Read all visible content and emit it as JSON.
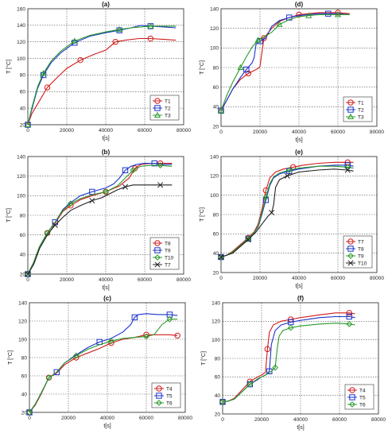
{
  "chart_data": [
    {
      "type": "line",
      "title": "(a)",
      "xlabel": "t[s]",
      "ylabel": "T [°C]",
      "xlim": [
        0,
        80000
      ],
      "ylim": [
        20,
        160
      ],
      "xticks": [
        "0",
        "20000",
        "40000",
        "60000",
        "80000"
      ],
      "yticks": [
        "20",
        "40",
        "60",
        "80",
        "100",
        "120",
        "140",
        "160"
      ],
      "grid": true,
      "legend_position": "bottom-right",
      "series": [
        {
          "name": "T1",
          "color": "#d11a1a",
          "marker": "circle",
          "x": [
            0,
            2000,
            6000,
            10000,
            15000,
            20000,
            27000,
            34000,
            40000,
            45000,
            50000,
            57000,
            63000,
            70000,
            76000
          ],
          "y": [
            20,
            33,
            49,
            65,
            77,
            88,
            98,
            105,
            110,
            120,
            122,
            124,
            124,
            123,
            122
          ]
        },
        {
          "name": "T2",
          "color": "#1a33cc",
          "marker": "square",
          "x": [
            0,
            2000,
            5000,
            8000,
            12000,
            17000,
            24000,
            32000,
            40000,
            47000,
            53000,
            58000,
            63000,
            70000,
            76000
          ],
          "y": [
            20,
            38,
            64,
            80,
            95,
            107,
            119,
            127,
            131,
            134,
            137,
            140,
            139,
            138,
            137
          ]
        },
        {
          "name": "T3",
          "color": "#2a9a2a",
          "marker": "triangle",
          "x": [
            0,
            2000,
            5000,
            8000,
            12000,
            17000,
            24000,
            32000,
            40000,
            47000,
            53000,
            58000,
            63000,
            70000,
            76000
          ],
          "y": [
            20,
            40,
            66,
            82,
            97,
            109,
            121,
            128,
            132,
            135,
            137,
            138,
            139,
            139,
            139
          ]
        }
      ]
    },
    {
      "type": "line",
      "title": "(d)",
      "xlabel": "t[s]",
      "ylabel": "T [°C]",
      "xlim": [
        0,
        80000
      ],
      "ylim": [
        20,
        140
      ],
      "xticks": [
        "0",
        "20000",
        "40000",
        "60000",
        "80000"
      ],
      "yticks": [
        "20",
        "40",
        "60",
        "80",
        "100",
        "120",
        "140"
      ],
      "grid": true,
      "legend_position": "bottom-right",
      "series": [
        {
          "name": "T1",
          "color": "#d11a1a",
          "marker": "circle",
          "x": [
            0,
            3000,
            6000,
            10000,
            14000,
            17000,
            19000,
            20000,
            22000,
            26000,
            30000,
            35000,
            40000,
            45000,
            50000,
            55000,
            60000,
            66000
          ],
          "y": [
            36,
            47,
            58,
            68,
            74,
            77,
            79,
            81,
            110,
            120,
            127,
            131,
            134,
            135,
            136,
            136,
            136,
            135
          ]
        },
        {
          "name": "T2",
          "color": "#1a33cc",
          "marker": "square",
          "x": [
            0,
            3000,
            6000,
            10000,
            13000,
            16000,
            17000,
            18000,
            20000,
            23000,
            26000,
            30000,
            35000,
            40000,
            45000,
            50000,
            55000,
            60000,
            66000
          ],
          "y": [
            36,
            47,
            58,
            70,
            78,
            85,
            90,
            104,
            107,
            110,
            122,
            128,
            131,
            133,
            134,
            135,
            135,
            135,
            134
          ]
        },
        {
          "name": "T3",
          "color": "#2a9a2a",
          "marker": "triangle",
          "x": [
            0,
            3000,
            6000,
            10000,
            13000,
            16000,
            19000,
            22000,
            26000,
            30000,
            35000,
            40000,
            45000,
            50000,
            55000,
            60000,
            66000
          ],
          "y": [
            36,
            52,
            65,
            80,
            91,
            101,
            108,
            111,
            116,
            124,
            129,
            132,
            133,
            134,
            134,
            134,
            134
          ]
        }
      ]
    },
    {
      "type": "line",
      "title": "(b)",
      "xlabel": "t[s]",
      "ylabel": "T [°C]",
      "xlim": [
        0,
        80000
      ],
      "ylim": [
        20,
        140
      ],
      "xticks": [
        "0",
        "20000",
        "40000",
        "60000",
        "80000"
      ],
      "yticks": [
        "20",
        "40",
        "60",
        "80",
        "100",
        "120",
        "140"
      ],
      "grid": true,
      "legend_position": "bottom-right",
      "series": [
        {
          "name": "T8",
          "color": "#d11a1a",
          "marker": "circle",
          "x": [
            0,
            3000,
            6000,
            10000,
            14000,
            18000,
            22000,
            27000,
            33000,
            40000,
            47000,
            52000,
            55000,
            58000,
            63000,
            68000,
            74000
          ],
          "y": [
            20,
            32,
            48,
            62,
            72,
            84,
            90,
            96,
            100,
            104,
            110,
            118,
            128,
            132,
            133,
            133,
            133
          ]
        },
        {
          "name": "T9",
          "color": "#1a33cc",
          "marker": "square",
          "x": [
            0,
            3000,
            6000,
            10000,
            14000,
            18000,
            22000,
            27000,
            33000,
            40000,
            44000,
            47000,
            50000,
            53000,
            56000,
            60000,
            65000,
            70000,
            74000
          ],
          "y": [
            20,
            32,
            48,
            62,
            73,
            86,
            93,
            100,
            104,
            108,
            112,
            118,
            126,
            130,
            132,
            133,
            133,
            132,
            132
          ]
        },
        {
          "name": "T10",
          "color": "#2a9a2a",
          "marker": "diamond",
          "x": [
            0,
            3000,
            6000,
            10000,
            14000,
            18000,
            22000,
            27000,
            33000,
            40000,
            46000,
            50000,
            54000,
            58000,
            63000,
            68000,
            74000
          ],
          "y": [
            20,
            32,
            48,
            62,
            73,
            85,
            92,
            97,
            101,
            104,
            110,
            118,
            126,
            130,
            131,
            131,
            130
          ]
        },
        {
          "name": "T7",
          "color": "#222222",
          "marker": "x",
          "x": [
            0,
            3000,
            6000,
            10000,
            14000,
            18000,
            22000,
            27000,
            33000,
            38000,
            42000,
            46000,
            50000,
            54000,
            58000,
            63000,
            68000,
            74000
          ],
          "y": [
            20,
            30,
            46,
            60,
            70,
            78,
            85,
            90,
            95,
            98,
            102,
            106,
            109,
            111,
            111,
            111,
            111,
            111
          ]
        }
      ]
    },
    {
      "type": "line",
      "title": "(e)",
      "xlabel": "t[s]",
      "ylabel": "T [°C]",
      "xlim": [
        0,
        80000
      ],
      "ylim": [
        20,
        140
      ],
      "xticks": [
        "0",
        "20000",
        "40000",
        "60000",
        "80000"
      ],
      "yticks": [
        "20",
        "40",
        "60",
        "80",
        "100",
        "120",
        "140"
      ],
      "grid": true,
      "legend_position": "bottom-right",
      "series": [
        {
          "name": "T7",
          "color": "#d11a1a",
          "marker": "circle",
          "x": [
            0,
            3000,
            6000,
            10000,
            14000,
            17000,
            19000,
            21000,
            23000,
            25000,
            28000,
            32000,
            37000,
            42000,
            50000,
            58000,
            65000,
            68000
          ],
          "y": [
            36,
            38,
            42,
            49,
            56,
            62,
            70,
            85,
            105,
            118,
            124,
            127,
            129,
            131,
            133,
            134,
            134,
            134
          ]
        },
        {
          "name": "T8",
          "color": "#1a33cc",
          "marker": "square",
          "x": [
            0,
            3000,
            6000,
            10000,
            14000,
            17000,
            19000,
            21000,
            23000,
            25000,
            27000,
            30000,
            35000,
            40000,
            50000,
            58000,
            65000,
            68000
          ],
          "y": [
            36,
            38,
            41,
            48,
            55,
            61,
            67,
            80,
            95,
            110,
            118,
            122,
            125,
            127,
            130,
            131,
            131,
            130
          ]
        },
        {
          "name": "T9",
          "color": "#2a9a2a",
          "marker": "diamond",
          "x": [
            0,
            3000,
            6000,
            10000,
            14000,
            17000,
            19000,
            21000,
            23000,
            25000,
            27000,
            30000,
            35000,
            40000,
            50000,
            58000,
            65000,
            68000
          ],
          "y": [
            36,
            38,
            41,
            48,
            55,
            61,
            68,
            82,
            98,
            112,
            119,
            123,
            126,
            128,
            130,
            130,
            129,
            128
          ]
        },
        {
          "name": "T10",
          "color": "#222222",
          "marker": "x",
          "x": [
            0,
            3000,
            6000,
            10000,
            14000,
            18000,
            21000,
            24000,
            26000,
            27000,
            28000,
            30000,
            34000,
            40000,
            50000,
            58000,
            65000,
            68000
          ],
          "y": [
            36,
            38,
            40,
            47,
            54,
            62,
            70,
            78,
            82,
            90,
            108,
            116,
            120,
            124,
            126,
            127,
            126,
            125
          ]
        }
      ]
    },
    {
      "type": "line",
      "title": "(c)",
      "xlabel": "t[s]",
      "ylabel": "T [°C]",
      "xlim": [
        0,
        80000
      ],
      "ylim": [
        20,
        140
      ],
      "xticks": [
        "0",
        "20000",
        "40000",
        "60000",
        "80000"
      ],
      "yticks": [
        "20",
        "40",
        "60",
        "80",
        "100",
        "120",
        "140"
      ],
      "grid": true,
      "legend_position": "bottom-right",
      "series": [
        {
          "name": "T4",
          "color": "#d11a1a",
          "marker": "circle",
          "x": [
            0,
            3000,
            6000,
            10000,
            14000,
            18000,
            24000,
            30000,
            36000,
            42000,
            48000,
            54000,
            60000,
            66000,
            72000,
            76000
          ],
          "y": [
            20,
            28,
            40,
            58,
            63,
            72,
            80,
            85,
            90,
            96,
            100,
            102,
            105,
            105,
            105,
            104
          ]
        },
        {
          "name": "T5",
          "color": "#1a33cc",
          "marker": "square",
          "x": [
            0,
            3000,
            6000,
            10000,
            14000,
            18000,
            24000,
            30000,
            36000,
            42000,
            48000,
            52000,
            54000,
            56000,
            60000,
            66000,
            72000,
            76000
          ],
          "y": [
            20,
            29,
            41,
            58,
            64,
            74,
            83,
            91,
            97,
            101,
            108,
            116,
            124,
            127,
            128,
            127,
            127,
            126
          ]
        },
        {
          "name": "T6",
          "color": "#2a9a2a",
          "marker": "diamond",
          "x": [
            0,
            3000,
            6000,
            10000,
            14000,
            18000,
            24000,
            30000,
            36000,
            42000,
            48000,
            54000,
            60000,
            64000,
            68000,
            72000,
            76000
          ],
          "y": [
            20,
            29,
            41,
            58,
            64,
            74,
            82,
            89,
            94,
            98,
            101,
            102,
            103,
            105,
            116,
            122,
            122
          ]
        }
      ]
    },
    {
      "type": "line",
      "title": "(f)",
      "xlabel": "t[s]",
      "ylabel": "T [°C]",
      "xlim": [
        0,
        80000
      ],
      "ylim": [
        20,
        140
      ],
      "xticks": [
        "0",
        "20000",
        "40000",
        "60000",
        "80000"
      ],
      "yticks": [
        "20",
        "40",
        "60",
        "80",
        "100",
        "120",
        "140"
      ],
      "grid": true,
      "legend_position": "bottom-right",
      "series": [
        {
          "name": "T4",
          "color": "#d11a1a",
          "marker": "circle",
          "x": [
            0,
            3000,
            6000,
            10000,
            14000,
            18000,
            20000,
            22000,
            23000,
            24000,
            26000,
            30000,
            35000,
            40000,
            50000,
            58000,
            65000,
            68000
          ],
          "y": [
            33,
            34,
            37,
            46,
            55,
            60,
            62,
            65,
            90,
            108,
            116,
            120,
            122,
            124,
            127,
            129,
            129,
            128
          ]
        },
        {
          "name": "T5",
          "color": "#1a33cc",
          "marker": "square",
          "x": [
            0,
            3000,
            6000,
            10000,
            14000,
            18000,
            20000,
            22000,
            24000,
            25000,
            27000,
            30000,
            35000,
            40000,
            50000,
            58000,
            65000,
            68000
          ],
          "y": [
            33,
            34,
            36,
            44,
            52,
            57,
            60,
            62,
            66,
            95,
            110,
            116,
            119,
            121,
            124,
            125,
            125,
            124
          ]
        },
        {
          "name": "T6",
          "color": "#2a9a2a",
          "marker": "diamond",
          "x": [
            0,
            3000,
            6000,
            10000,
            14000,
            18000,
            22000,
            25000,
            27000,
            28000,
            29000,
            31000,
            35000,
            40000,
            50000,
            58000,
            65000,
            68000
          ],
          "y": [
            33,
            34,
            36,
            44,
            52,
            58,
            62,
            66,
            70,
            90,
            104,
            110,
            113,
            115,
            117,
            118,
            117,
            116
          ]
        }
      ]
    }
  ]
}
